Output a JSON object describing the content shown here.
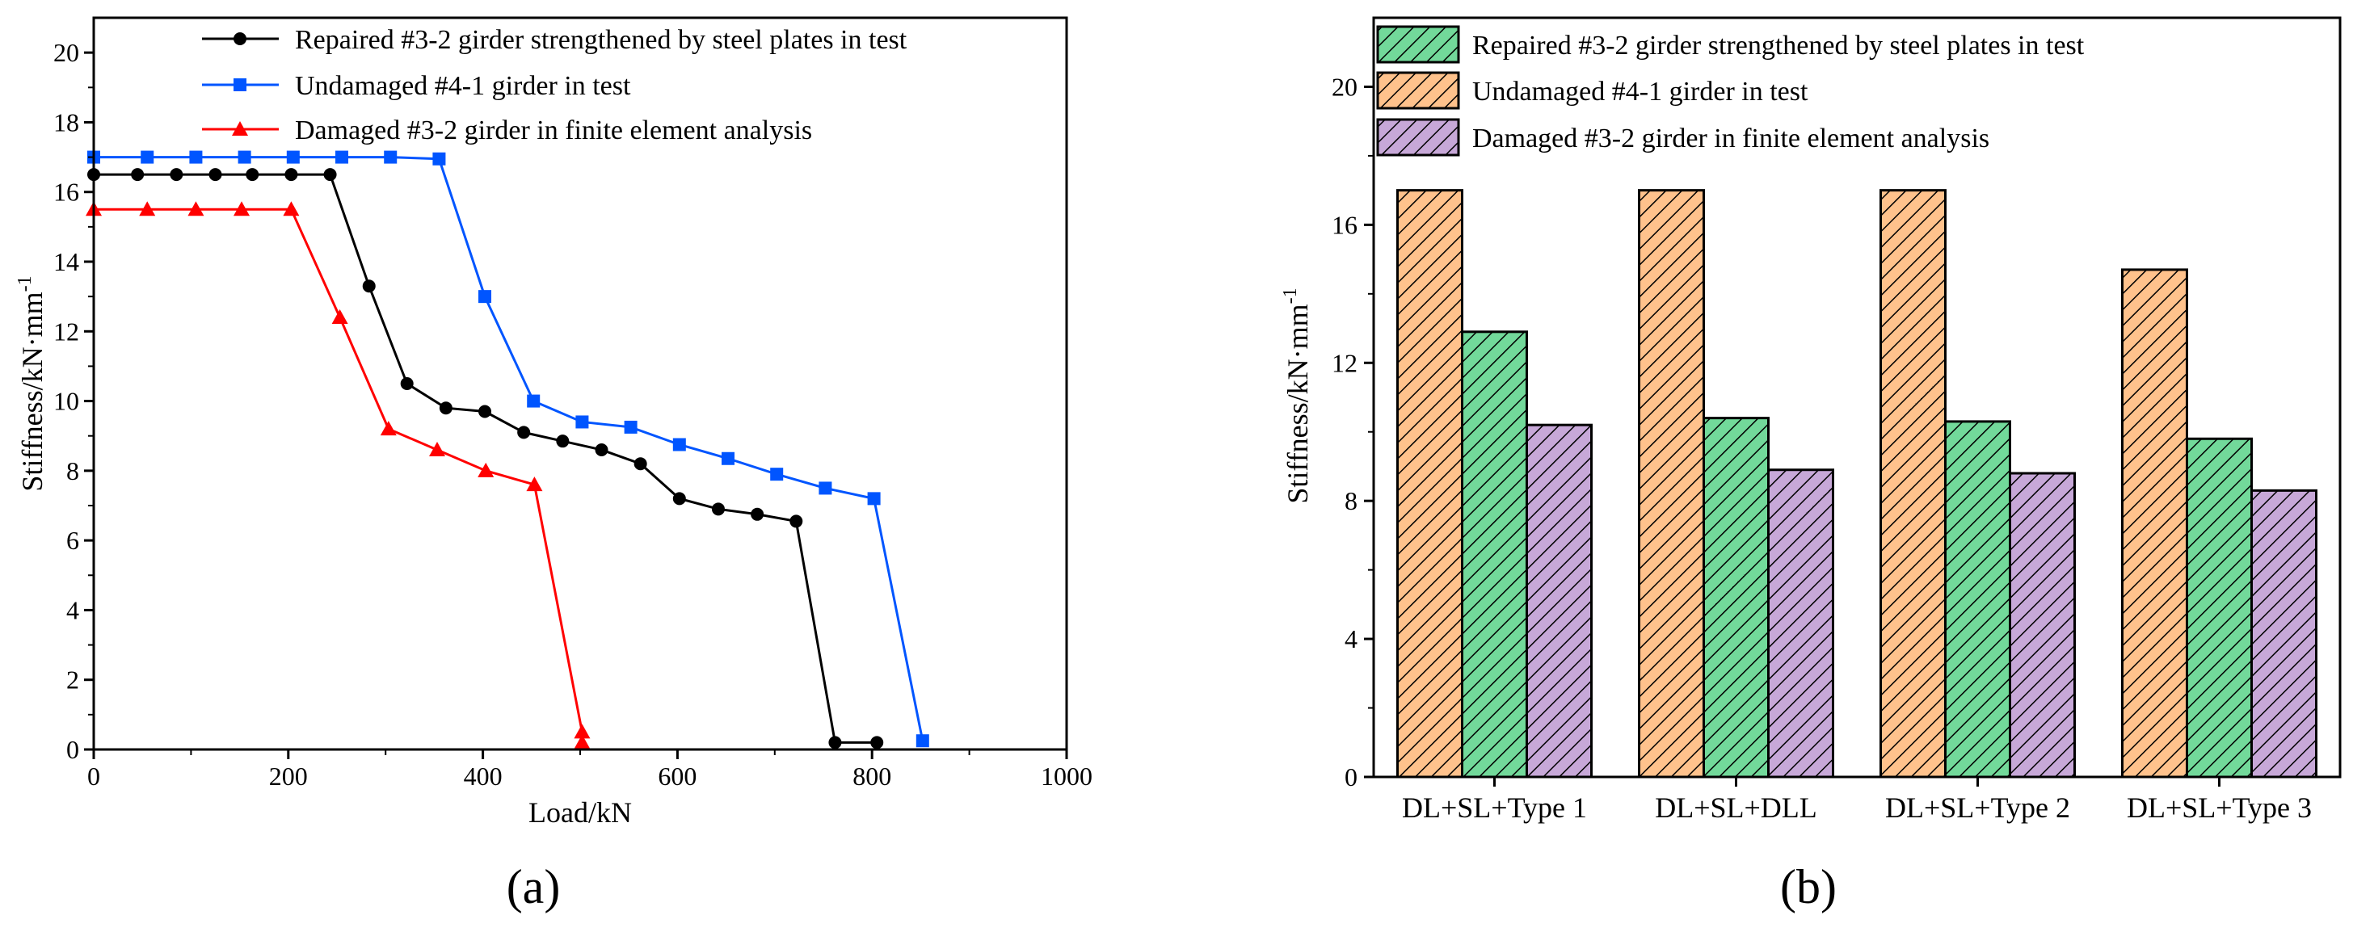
{
  "panels": {
    "a": "(a)",
    "b": "(b)"
  },
  "colors": {
    "black": "#000000",
    "blue": "#0055ff",
    "red": "#ff0000",
    "green": "#72d99a",
    "orange": "#ffc28c",
    "purple": "#c7a8d8"
  },
  "chart_data": [
    {
      "type": "line",
      "xlabel": "Load/kN",
      "ylabel": "Stiffness/kN·mm",
      "ylabel_sup": "-1",
      "xlim": [
        0,
        1000
      ],
      "ylim": [
        0,
        21
      ],
      "xticks": [
        0,
        200,
        400,
        600,
        800,
        1000
      ],
      "yticks": [
        0,
        2,
        4,
        6,
        8,
        10,
        12,
        14,
        16,
        18,
        20
      ],
      "legend_position": "top",
      "series": [
        {
          "name": "Repaired #3-2 girder strengthened by steel plates in test",
          "color": "#000000",
          "marker": "circle",
          "x": [
            0,
            45,
            85,
            125,
            163,
            203,
            243,
            283,
            322,
            362,
            402,
            442,
            482,
            522,
            562,
            602,
            642,
            682,
            722,
            762,
            805
          ],
          "y": [
            16.5,
            16.5,
            16.5,
            16.5,
            16.5,
            16.5,
            16.5,
            13.3,
            10.5,
            9.8,
            9.7,
            9.1,
            8.85,
            8.6,
            8.2,
            7.2,
            6.9,
            6.75,
            6.55,
            0.2,
            0.2
          ]
        },
        {
          "name": "Undamaged #4-1 girder in test",
          "color": "#0055ff",
          "marker": "square",
          "x": [
            0,
            55,
            105,
            155,
            205,
            255,
            305,
            355,
            402,
            452,
            502,
            552,
            602,
            652,
            702,
            752,
            802,
            852
          ],
          "y": [
            17.0,
            17.0,
            17.0,
            17.0,
            17.0,
            17.0,
            17.0,
            16.95,
            13.0,
            10.0,
            9.4,
            9.25,
            8.75,
            8.35,
            7.9,
            7.5,
            7.2,
            0.25
          ]
        },
        {
          "name": "Damaged #3-2 girder in finite element analysis",
          "color": "#ff0000",
          "marker": "triangle",
          "x": [
            0,
            55,
            105,
            152,
            203,
            253,
            303,
            353,
            403,
            453,
            502,
            502
          ],
          "y": [
            15.5,
            15.5,
            15.5,
            15.5,
            15.5,
            12.4,
            9.2,
            8.6,
            8.0,
            7.6,
            0.5,
            0.2
          ]
        }
      ]
    },
    {
      "type": "bar",
      "ylabel": "Stiffness/kN·mm",
      "ylabel_sup": "-1",
      "ylim": [
        0,
        22
      ],
      "yticks": [
        0,
        4,
        8,
        12,
        16,
        20
      ],
      "categories": [
        "DL+SL+Type 1",
        "DL+SL+DLL",
        "DL+SL+Type 2",
        "DL+SL+Type 3"
      ],
      "legend_position": "top",
      "bar_order": [
        1,
        0,
        2
      ],
      "series": [
        {
          "name": "Repaired #3-2 girder strengthened by steel plates in test",
          "color": "#72d99a",
          "values": [
            12.9,
            10.4,
            10.3,
            9.8
          ]
        },
        {
          "name": "Undamaged #4-1 girder in test",
          "color": "#ffc28c",
          "values": [
            17.0,
            17.0,
            17.0,
            14.7
          ]
        },
        {
          "name": "Damaged #3-2 girder in finite element analysis",
          "color": "#c7a8d8",
          "values": [
            10.2,
            8.9,
            8.8,
            8.3
          ]
        }
      ]
    }
  ]
}
